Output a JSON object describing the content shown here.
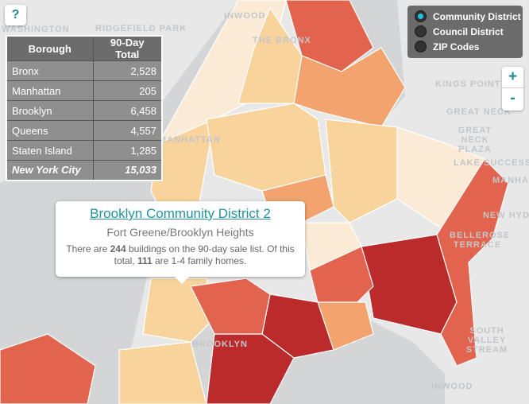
{
  "help": {
    "label": "?"
  },
  "table": {
    "headers": [
      "Borough",
      "90-Day Total"
    ],
    "rows": [
      {
        "borough": "Bronx",
        "total": "2,528"
      },
      {
        "borough": "Manhattan",
        "total": "205"
      },
      {
        "borough": "Brooklyn",
        "total": "6,458"
      },
      {
        "borough": "Queens",
        "total": "4,557"
      },
      {
        "borough": "Staten Island",
        "total": "1,285"
      }
    ],
    "total": {
      "borough": "New York City",
      "total": "15,033"
    }
  },
  "layers": {
    "options": [
      {
        "label": "Community District",
        "selected": true
      },
      {
        "label": "Council District",
        "selected": false
      },
      {
        "label": "ZIP Codes",
        "selected": false
      }
    ]
  },
  "zoom": {
    "in": "+",
    "out": "-"
  },
  "popup": {
    "title": "Brooklyn Community District 2",
    "subtitle": "Fort Greene/Brooklyn Heights",
    "text_1": "There are ",
    "buildings": "244",
    "text_2": " buildings on the 90-day sale list. Of this total, ",
    "family_homes": "111",
    "text_3": " are 1-4 family homes."
  },
  "map_labels": [
    "RIDGEFIELD PARK",
    "INWOOD",
    "THE BRONX",
    "MANHATTAN",
    "KINGS POINT",
    "GREAT NECK",
    "GREAT NECK PLAZA",
    "LAKE SUCCESS",
    "MANHASSET",
    "NEW HYDE",
    "BELLEROSE TERRACE",
    "SOUTH VALLEY STREAM",
    "BROOKLYN",
    "INWOOD",
    "WASHINGTON"
  ],
  "colors": {
    "c1": "#fbebd6",
    "c2": "#f8d39c",
    "c3": "#f2a36e",
    "c4": "#e2644f",
    "c5": "#bc2b2c",
    "accent": "#23949a"
  }
}
